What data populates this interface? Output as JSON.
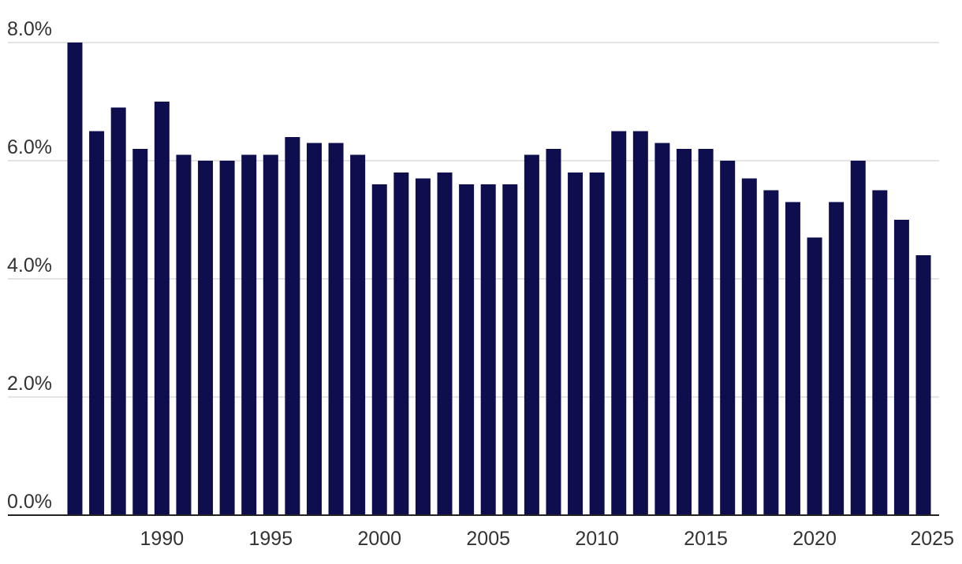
{
  "chart_data": {
    "type": "bar",
    "categories": [
      null,
      null,
      null,
      null,
      "1990",
      null,
      null,
      null,
      null,
      "1995",
      null,
      null,
      null,
      null,
      "2000",
      null,
      null,
      null,
      null,
      "2005",
      null,
      null,
      null,
      null,
      "2010",
      null,
      null,
      null,
      null,
      "2015",
      null,
      null,
      null,
      null,
      "2020",
      null,
      null,
      null,
      null,
      "2025"
    ],
    "values": [
      8.0,
      6.5,
      6.9,
      6.2,
      7.0,
      6.1,
      6.0,
      6.0,
      6.1,
      6.1,
      6.4,
      6.3,
      6.3,
      6.1,
      5.6,
      5.8,
      5.7,
      5.8,
      5.6,
      5.6,
      5.6,
      6.1,
      6.2,
      5.8,
      5.8,
      6.5,
      6.5,
      6.3,
      6.2,
      6.2,
      6.0,
      5.7,
      5.5,
      5.3,
      4.7,
      5.3,
      6.0,
      5.5,
      5.0,
      4.4
    ],
    "color": "#0e0e4f",
    "ylim": [
      0,
      8
    ],
    "yticks": [
      {
        "value": 0,
        "label": "0.0%"
      },
      {
        "value": 2,
        "label": "2.0%"
      },
      {
        "value": 4,
        "label": "4.0%"
      },
      {
        "value": 6,
        "label": "6.0%"
      },
      {
        "value": 8,
        "label": "8.0%"
      }
    ],
    "grid": true
  }
}
